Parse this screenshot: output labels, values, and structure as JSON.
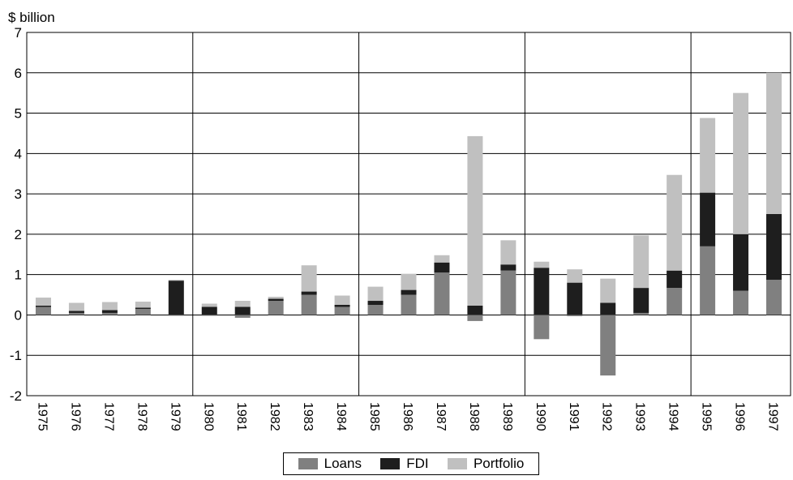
{
  "chart_data": {
    "type": "bar",
    "stacked": true,
    "unit_label": "$ billion",
    "title": "",
    "xlabel": "",
    "ylabel": "$ billion",
    "ylim": [
      -2,
      7
    ],
    "yticks": [
      7,
      6,
      5,
      4,
      3,
      2,
      1,
      0,
      -1,
      -2
    ],
    "grid": "horizontal",
    "period_breaks": [
      "1980",
      "1985",
      "1990",
      "1995"
    ],
    "categories": [
      "1975",
      "1976",
      "1977",
      "1978",
      "1979",
      "1980",
      "1981",
      "1982",
      "1983",
      "1984",
      "1985",
      "1986",
      "1987",
      "1988",
      "1989",
      "1990",
      "1991",
      "1992",
      "1993",
      "1994",
      "1995",
      "1996",
      "1997"
    ],
    "series": [
      {
        "name": "Loans",
        "color": "#808080",
        "values": [
          0.2,
          0.05,
          0.05,
          0.15,
          -0.02,
          -0.02,
          -0.07,
          0.35,
          0.5,
          0.2,
          0.25,
          0.5,
          1.05,
          -0.15,
          1.1,
          -0.6,
          -0.03,
          -1.5,
          0.05,
          0.67,
          1.7,
          0.6,
          0.87
        ]
      },
      {
        "name": "FDI",
        "color": "#1e1e1e",
        "values": [
          0.03,
          0.05,
          0.07,
          0.03,
          0.85,
          0.2,
          0.2,
          0.05,
          0.08,
          0.05,
          0.1,
          0.12,
          0.25,
          0.23,
          0.15,
          1.17,
          0.8,
          0.3,
          0.62,
          0.43,
          1.33,
          1.4,
          1.63
        ]
      },
      {
        "name": "Portfolio",
        "color": "#c0c0c0",
        "values": [
          0.2,
          0.2,
          0.2,
          0.15,
          0.02,
          0.08,
          0.15,
          0.05,
          0.65,
          0.23,
          0.35,
          0.4,
          0.18,
          4.2,
          0.6,
          0.15,
          0.33,
          0.6,
          1.3,
          2.37,
          1.85,
          3.5,
          3.5
        ]
      }
    ],
    "legend_position": "bottom-center"
  }
}
